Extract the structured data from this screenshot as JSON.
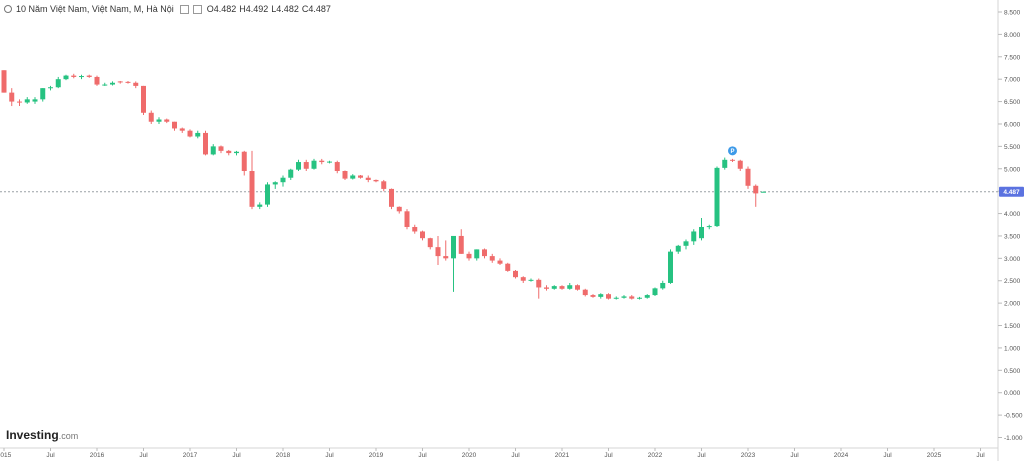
{
  "legend": {
    "title": "10 Năm Việt Nam, Việt Nam, M, Hà Nội",
    "open": "O4.482",
    "high": "H4.492",
    "low": "L4.482",
    "close": "C4.487"
  },
  "logo": {
    "brand": "Investing",
    "domain": ".com"
  },
  "colors": {
    "up": "#26c281",
    "down": "#ef6b6b",
    "price_tag": "#5b72e0",
    "marker": "#3d9ae8"
  },
  "chart_data": {
    "type": "candlestick",
    "ylim": [
      -1.0,
      8.5
    ],
    "y_ticks": [
      "8.500",
      "8.000",
      "7.500",
      "7.000",
      "6.500",
      "6.000",
      "5.500",
      "5.000",
      "4.500",
      "4.000",
      "3.500",
      "3.000",
      "2.500",
      "2.000",
      "1.500",
      "1.000",
      "0.500",
      "0.000",
      "-0.500",
      "-1.000"
    ],
    "x_ticks": [
      {
        "label": "2015",
        "m": 0
      },
      {
        "label": "Jul",
        "m": 6
      },
      {
        "label": "2016",
        "m": 12
      },
      {
        "label": "Jul",
        "m": 18
      },
      {
        "label": "2017",
        "m": 24
      },
      {
        "label": "Jul",
        "m": 30
      },
      {
        "label": "2018",
        "m": 36
      },
      {
        "label": "Jul",
        "m": 42
      },
      {
        "label": "2019",
        "m": 48
      },
      {
        "label": "Jul",
        "m": 54
      },
      {
        "label": "2020",
        "m": 60
      },
      {
        "label": "Jul",
        "m": 66
      },
      {
        "label": "2021",
        "m": 72
      },
      {
        "label": "Jul",
        "m": 78
      },
      {
        "label": "2022",
        "m": 84
      },
      {
        "label": "Jul",
        "m": 90
      },
      {
        "label": "2023",
        "m": 96
      },
      {
        "label": "Jul",
        "m": 102
      },
      {
        "label": "2024",
        "m": 108
      },
      {
        "label": "Jul",
        "m": 114
      },
      {
        "label": "2025",
        "m": 120
      },
      {
        "label": "Jul",
        "m": 126
      }
    ],
    "last_price": 4.487,
    "last_price_label": "4.487",
    "candles": [
      [
        7.2,
        7.2,
        6.7,
        6.7
      ],
      [
        6.7,
        6.8,
        6.4,
        6.5
      ],
      [
        6.5,
        6.55,
        6.4,
        6.48
      ],
      [
        6.48,
        6.6,
        6.45,
        6.55
      ],
      [
        6.5,
        6.6,
        6.45,
        6.55
      ],
      [
        6.55,
        6.8,
        6.5,
        6.8
      ],
      [
        6.8,
        6.85,
        6.75,
        6.82
      ],
      [
        6.82,
        7.05,
        6.8,
        7.0
      ],
      [
        7.0,
        7.1,
        6.98,
        7.08
      ],
      [
        7.08,
        7.12,
        7.02,
        7.05
      ],
      [
        7.05,
        7.1,
        7.0,
        7.07
      ],
      [
        7.08,
        7.1,
        7.03,
        7.05
      ],
      [
        7.05,
        7.08,
        6.85,
        6.88
      ],
      [
        6.88,
        6.92,
        6.85,
        6.88
      ],
      [
        6.88,
        6.95,
        6.86,
        6.92
      ],
      [
        6.95,
        6.96,
        6.9,
        6.94
      ],
      [
        6.94,
        6.96,
        6.9,
        6.93
      ],
      [
        6.92,
        6.95,
        6.8,
        6.85
      ],
      [
        6.85,
        6.85,
        6.2,
        6.25
      ],
      [
        6.25,
        6.3,
        6.0,
        6.05
      ],
      [
        6.05,
        6.15,
        6.0,
        6.1
      ],
      [
        6.1,
        6.12,
        6.02,
        6.05
      ],
      [
        6.05,
        6.05,
        5.85,
        5.9
      ],
      [
        5.9,
        5.92,
        5.8,
        5.85
      ],
      [
        5.85,
        5.88,
        5.7,
        5.72
      ],
      [
        5.72,
        5.85,
        5.68,
        5.8
      ],
      [
        5.8,
        5.85,
        5.3,
        5.32
      ],
      [
        5.32,
        5.55,
        5.3,
        5.5
      ],
      [
        5.5,
        5.52,
        5.35,
        5.4
      ],
      [
        5.4,
        5.42,
        5.3,
        5.35
      ],
      [
        5.35,
        5.4,
        5.3,
        5.38
      ],
      [
        5.38,
        5.4,
        4.85,
        4.95
      ],
      [
        4.95,
        5.4,
        4.1,
        4.15
      ],
      [
        4.15,
        4.25,
        4.1,
        4.2
      ],
      [
        4.2,
        4.7,
        4.15,
        4.65
      ],
      [
        4.65,
        4.72,
        4.55,
        4.7
      ],
      [
        4.7,
        4.85,
        4.6,
        4.8
      ],
      [
        4.8,
        5.0,
        4.75,
        4.98
      ],
      [
        4.98,
        5.2,
        4.95,
        5.15
      ],
      [
        5.15,
        5.2,
        4.95,
        5.0
      ],
      [
        5.0,
        5.22,
        4.98,
        5.18
      ],
      [
        5.18,
        5.22,
        5.1,
        5.15
      ],
      [
        5.15,
        5.18,
        5.12,
        5.16
      ],
      [
        5.15,
        5.18,
        4.9,
        4.95
      ],
      [
        4.95,
        4.96,
        4.75,
        4.78
      ],
      [
        4.78,
        4.88,
        4.76,
        4.85
      ],
      [
        4.85,
        4.86,
        4.78,
        4.8
      ],
      [
        4.8,
        4.85,
        4.7,
        4.75
      ],
      [
        4.75,
        4.76,
        4.7,
        4.72
      ],
      [
        4.72,
        4.75,
        4.5,
        4.55
      ],
      [
        4.55,
        4.56,
        4.1,
        4.15
      ],
      [
        4.15,
        4.16,
        4.0,
        4.05
      ],
      [
        4.05,
        4.1,
        3.65,
        3.7
      ],
      [
        3.7,
        3.75,
        3.55,
        3.6
      ],
      [
        3.6,
        3.62,
        3.4,
        3.45
      ],
      [
        3.45,
        3.46,
        3.2,
        3.25
      ],
      [
        3.25,
        3.5,
        2.85,
        3.05
      ],
      [
        3.05,
        3.4,
        2.95,
        3.0
      ],
      [
        3.0,
        3.5,
        2.25,
        3.5
      ],
      [
        3.5,
        3.65,
        3.1,
        3.1
      ],
      [
        3.1,
        3.15,
        2.95,
        3.0
      ],
      [
        3.0,
        3.2,
        2.95,
        3.2
      ],
      [
        3.2,
        3.22,
        3.0,
        3.05
      ],
      [
        3.05,
        3.1,
        2.9,
        2.95
      ],
      [
        2.95,
        3.0,
        2.85,
        2.88
      ],
      [
        2.88,
        2.9,
        2.7,
        2.72
      ],
      [
        2.72,
        2.74,
        2.55,
        2.58
      ],
      [
        2.58,
        2.6,
        2.45,
        2.5
      ],
      [
        2.5,
        2.55,
        2.48,
        2.52
      ],
      [
        2.52,
        2.55,
        2.1,
        2.35
      ],
      [
        2.35,
        2.4,
        2.28,
        2.32
      ],
      [
        2.32,
        2.4,
        2.3,
        2.38
      ],
      [
        2.38,
        2.4,
        2.3,
        2.32
      ],
      [
        2.32,
        2.45,
        2.3,
        2.4
      ],
      [
        2.4,
        2.42,
        2.28,
        2.3
      ],
      [
        2.3,
        2.32,
        2.15,
        2.18
      ],
      [
        2.18,
        2.2,
        2.12,
        2.14
      ],
      [
        2.14,
        2.22,
        2.1,
        2.2
      ],
      [
        2.2,
        2.22,
        2.08,
        2.1
      ],
      [
        2.1,
        2.15,
        2.08,
        2.12
      ],
      [
        2.12,
        2.18,
        2.1,
        2.15
      ],
      [
        2.15,
        2.18,
        2.08,
        2.1
      ],
      [
        2.1,
        2.14,
        2.08,
        2.12
      ],
      [
        2.12,
        2.2,
        2.1,
        2.18
      ],
      [
        2.18,
        2.35,
        2.16,
        2.33
      ],
      [
        2.33,
        2.5,
        2.3,
        2.45
      ],
      [
        2.45,
        3.2,
        2.43,
        3.15
      ],
      [
        3.15,
        3.3,
        3.1,
        3.28
      ],
      [
        3.28,
        3.42,
        3.2,
        3.38
      ],
      [
        3.38,
        3.65,
        3.3,
        3.6
      ],
      [
        3.45,
        3.9,
        3.4,
        3.7
      ],
      [
        3.7,
        3.75,
        3.65,
        3.72
      ],
      [
        3.72,
        5.05,
        3.7,
        5.02
      ],
      [
        5.02,
        5.25,
        4.98,
        5.2
      ],
      [
        5.2,
        5.22,
        5.15,
        5.18
      ],
      [
        5.18,
        5.2,
        4.95,
        5.0
      ],
      [
        5.0,
        5.05,
        4.55,
        4.62
      ],
      [
        4.62,
        4.65,
        4.15,
        4.45
      ],
      [
        4.482,
        4.492,
        4.482,
        4.487
      ]
    ]
  }
}
